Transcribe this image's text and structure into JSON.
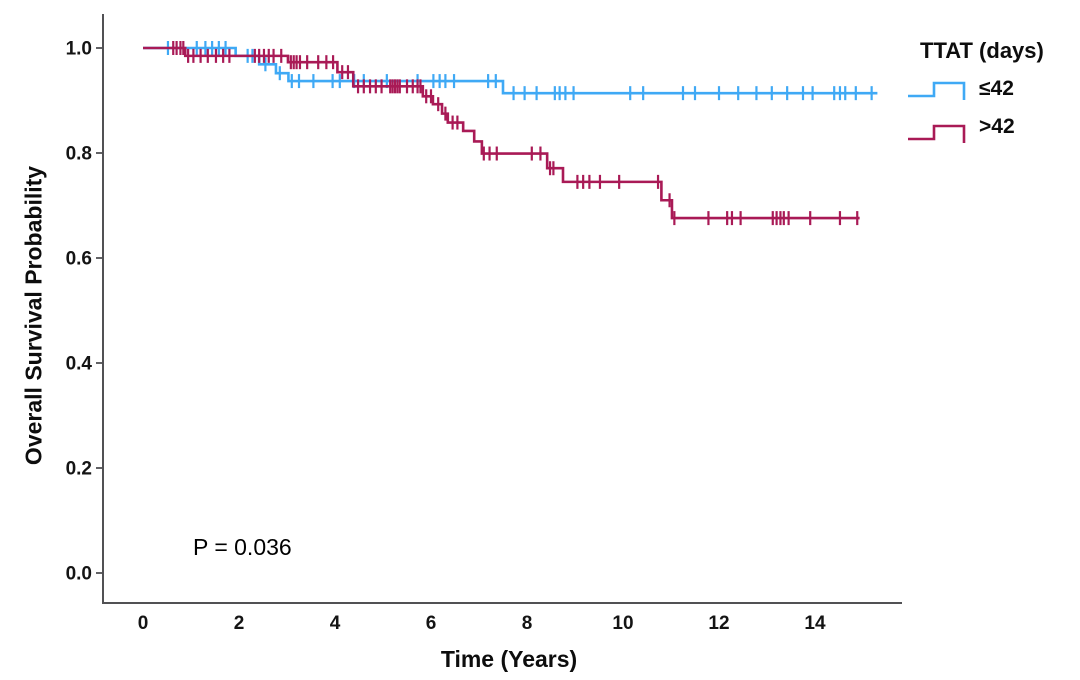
{
  "chart_data": {
    "type": "line",
    "subtype": "kaplan-meier-step",
    "title": "",
    "xlabel": "Time (Years)",
    "ylabel": "Overall Survival Probability",
    "annotation_p_value": "P = 0.036",
    "legend_title": "TTAT (days)",
    "legend_position": "top-right",
    "grid": false,
    "xlim": [
      0,
      15.8
    ],
    "ylim": [
      0,
      1.05
    ],
    "x_ticks": [
      "0",
      "2",
      "4",
      "6",
      "8",
      "10",
      "12",
      "14"
    ],
    "y_ticks": [
      "0.0",
      "0.2",
      "0.4",
      "0.6",
      "0.8",
      "1.0"
    ],
    "axis_color": "#515154",
    "series": [
      {
        "name": "le42",
        "label": "≤42",
        "color": "#3FA9F5",
        "start": [
          0,
          1.0
        ],
        "steps": [
          [
            1.93,
            0.985
          ],
          [
            2.42,
            0.969
          ],
          [
            2.77,
            0.952
          ],
          [
            3.03,
            0.937
          ],
          [
            7.5,
            0.914
          ]
        ],
        "end_time": 15.3,
        "final_probability": 0.914,
        "censors": [
          [
            0.52,
            1.0
          ],
          [
            1.12,
            1.0
          ],
          [
            1.3,
            1.0
          ],
          [
            1.44,
            1.0
          ],
          [
            1.58,
            1.0
          ],
          [
            1.72,
            1.0
          ],
          [
            2.18,
            0.985
          ],
          [
            2.28,
            0.985
          ],
          [
            2.55,
            0.969
          ],
          [
            2.85,
            0.952
          ],
          [
            3.1,
            0.937
          ],
          [
            3.25,
            0.937
          ],
          [
            3.55,
            0.937
          ],
          [
            3.95,
            0.937
          ],
          [
            4.1,
            0.937
          ],
          [
            4.4,
            0.937
          ],
          [
            4.6,
            0.937
          ],
          [
            5.08,
            0.937
          ],
          [
            5.72,
            0.937
          ],
          [
            6.05,
            0.937
          ],
          [
            6.18,
            0.937
          ],
          [
            6.3,
            0.937
          ],
          [
            6.48,
            0.937
          ],
          [
            7.19,
            0.937
          ],
          [
            7.35,
            0.937
          ],
          [
            7.72,
            0.914
          ],
          [
            7.95,
            0.914
          ],
          [
            8.2,
            0.914
          ],
          [
            8.58,
            0.914
          ],
          [
            8.68,
            0.914
          ],
          [
            8.8,
            0.914
          ],
          [
            8.97,
            0.914
          ],
          [
            10.15,
            0.914
          ],
          [
            10.42,
            0.914
          ],
          [
            11.25,
            0.914
          ],
          [
            11.5,
            0.914
          ],
          [
            12.0,
            0.914
          ],
          [
            12.4,
            0.914
          ],
          [
            12.78,
            0.914
          ],
          [
            13.1,
            0.914
          ],
          [
            13.42,
            0.914
          ],
          [
            13.75,
            0.914
          ],
          [
            13.95,
            0.914
          ],
          [
            14.4,
            0.914
          ],
          [
            14.52,
            0.914
          ],
          [
            14.63,
            0.914
          ],
          [
            14.85,
            0.914
          ],
          [
            15.18,
            0.914
          ]
        ]
      },
      {
        "name": "gt42",
        "label": ">42",
        "color": "#A91A56",
        "start": [
          0,
          1.0
        ],
        "steps": [
          [
            0.88,
            0.985
          ],
          [
            3.02,
            0.973
          ],
          [
            4.05,
            0.954
          ],
          [
            4.38,
            0.927
          ],
          [
            5.83,
            0.908
          ],
          [
            6.04,
            0.893
          ],
          [
            6.23,
            0.875
          ],
          [
            6.35,
            0.858
          ],
          [
            6.67,
            0.842
          ],
          [
            6.9,
            0.822
          ],
          [
            7.06,
            0.799
          ],
          [
            8.42,
            0.771
          ],
          [
            8.75,
            0.745
          ],
          [
            10.8,
            0.71
          ],
          [
            11.02,
            0.676
          ]
        ],
        "end_time": 14.93,
        "final_probability": 0.676,
        "censors": [
          [
            0.63,
            1.0
          ],
          [
            0.7,
            1.0
          ],
          [
            0.78,
            1.0
          ],
          [
            0.84,
            1.0
          ],
          [
            0.94,
            0.985
          ],
          [
            1.05,
            0.985
          ],
          [
            1.2,
            0.985
          ],
          [
            1.35,
            0.985
          ],
          [
            1.52,
            0.985
          ],
          [
            1.67,
            0.985
          ],
          [
            1.8,
            0.985
          ],
          [
            2.33,
            0.985
          ],
          [
            2.42,
            0.985
          ],
          [
            2.52,
            0.985
          ],
          [
            2.62,
            0.985
          ],
          [
            2.72,
            0.985
          ],
          [
            2.88,
            0.985
          ],
          [
            3.08,
            0.973
          ],
          [
            3.14,
            0.973
          ],
          [
            3.2,
            0.973
          ],
          [
            3.27,
            0.973
          ],
          [
            3.42,
            0.973
          ],
          [
            3.65,
            0.973
          ],
          [
            3.82,
            0.973
          ],
          [
            3.96,
            0.973
          ],
          [
            4.15,
            0.954
          ],
          [
            4.27,
            0.954
          ],
          [
            4.48,
            0.927
          ],
          [
            4.6,
            0.927
          ],
          [
            4.73,
            0.927
          ],
          [
            4.85,
            0.927
          ],
          [
            4.97,
            0.927
          ],
          [
            5.15,
            0.927
          ],
          [
            5.2,
            0.927
          ],
          [
            5.25,
            0.927
          ],
          [
            5.3,
            0.927
          ],
          [
            5.35,
            0.927
          ],
          [
            5.5,
            0.927
          ],
          [
            5.62,
            0.927
          ],
          [
            5.72,
            0.927
          ],
          [
            5.78,
            0.927
          ],
          [
            5.9,
            0.908
          ],
          [
            6.0,
            0.908
          ],
          [
            6.15,
            0.893
          ],
          [
            6.3,
            0.875
          ],
          [
            6.45,
            0.858
          ],
          [
            6.55,
            0.858
          ],
          [
            7.1,
            0.799
          ],
          [
            7.22,
            0.799
          ],
          [
            7.37,
            0.799
          ],
          [
            8.1,
            0.799
          ],
          [
            8.28,
            0.799
          ],
          [
            8.48,
            0.771
          ],
          [
            8.55,
            0.771
          ],
          [
            9.05,
            0.745
          ],
          [
            9.17,
            0.745
          ],
          [
            9.3,
            0.745
          ],
          [
            9.52,
            0.745
          ],
          [
            9.92,
            0.745
          ],
          [
            10.73,
            0.745
          ],
          [
            10.97,
            0.71
          ],
          [
            11.07,
            0.676
          ],
          [
            11.78,
            0.676
          ],
          [
            12.17,
            0.676
          ],
          [
            12.27,
            0.676
          ],
          [
            12.45,
            0.676
          ],
          [
            13.12,
            0.676
          ],
          [
            13.2,
            0.676
          ],
          [
            13.28,
            0.676
          ],
          [
            13.35,
            0.676
          ],
          [
            13.45,
            0.676
          ],
          [
            13.9,
            0.676
          ],
          [
            14.52,
            0.676
          ],
          [
            14.88,
            0.676
          ]
        ]
      }
    ]
  }
}
